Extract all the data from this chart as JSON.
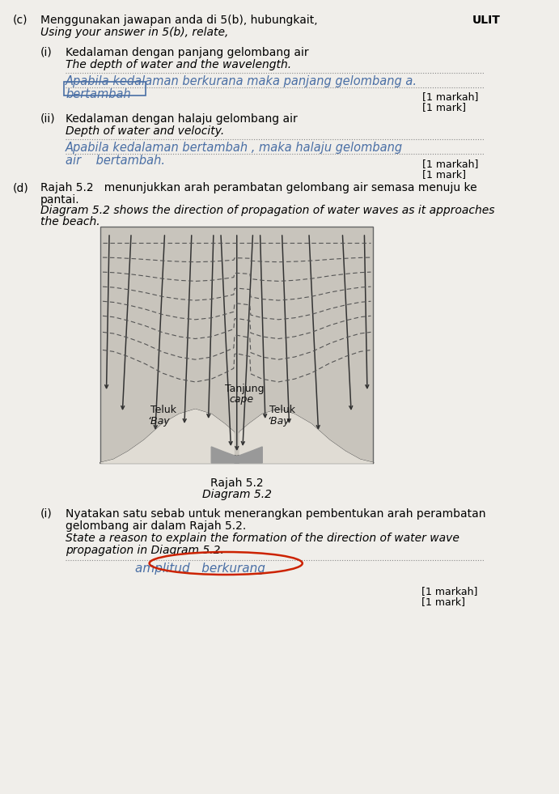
{
  "bg_color": "#f0eeea",
  "text_color": "#000000",
  "title_c": "(c)",
  "title_text1": "Menggunakan jawapan anda di 5(b), hubungkait,",
  "title_text2": "Using your answer in 5(b), relate,",
  "ulit": "ULIT",
  "section_i_label": "(i)",
  "section_i_text1": "Kedalaman dengan panjang gelombang air",
  "section_i_text2": "The depth of water and the wavelength.",
  "section_i_answer1": "Apabila kedalaman berkurana maka panjang gelombang a.",
  "section_i_answer2": "bertambah",
  "section_i_mark1": "[1 markah]",
  "section_i_mark2": "[1 mark]",
  "section_ii_label": "(ii)",
  "section_ii_text1": "Kedalaman dengan halaju gelombang air",
  "section_ii_text2": "Depth of water and velocity.",
  "section_ii_answer1": "Apabila kedalaman bertambah , maka halaju gelombang",
  "section_ii_answer2": "air    bertambah.",
  "section_ii_mark1": "[1 markah]",
  "section_ii_mark2": "[1 mark]",
  "section_d_label": "(d)",
  "section_d_text1": "Rajah 5.2   menunjukkan arah perambatan gelombang air semasa menuju ke",
  "section_d_text2": "pantai.",
  "section_d_text3": "Diagram 5.2 shows the direction of propagation of water waves as it approaches",
  "section_d_text4": "the beach.",
  "diagram_label1": "Rajah 5.2",
  "diagram_label2": "Diagram 5.2",
  "section_di_label": "(i)",
  "section_di_text1": "Nyatakan satu sebab untuk menerangkan pembentukan arah perambatan",
  "section_di_text2": "gelombang air dalam Rajah 5.2.",
  "section_di_text3": "State a reason to explain the formation of the direction of water wave",
  "section_di_text4": "propagation in Diagram 5.2.",
  "section_di_answer": "amplitud   berkurang",
  "section_di_mark1": "[1 markah]",
  "section_di_mark2": "[1 mark]",
  "handwriting_color": "#4a6fa5",
  "underline_color": "#4a6fa5",
  "circle_color": "#cc2200",
  "dotted_line_color": "#888888"
}
